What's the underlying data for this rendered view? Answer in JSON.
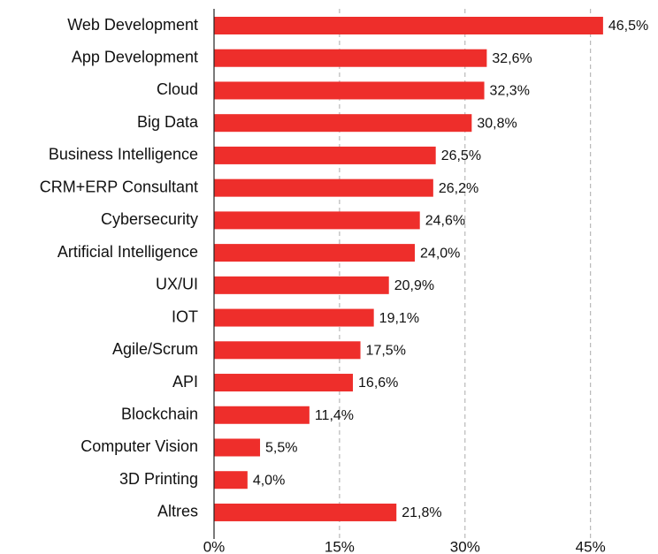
{
  "chart_data": {
    "type": "bar",
    "orientation": "horizontal",
    "categories": [
      "Web Development",
      "App Development",
      "Cloud",
      "Big Data",
      "Business Intelligence",
      "CRM+ERP Consultant",
      "Cybersecurity",
      "Artificial Intelligence",
      "UX/UI",
      "IOT",
      "Agile/Scrum",
      "API",
      "Blockchain",
      "Computer Vision",
      "3D Printing",
      "Altres"
    ],
    "values": [
      46.5,
      32.6,
      32.3,
      30.8,
      26.5,
      26.2,
      24.6,
      24.0,
      20.9,
      19.1,
      17.5,
      16.6,
      11.4,
      5.5,
      4.0,
      21.8
    ],
    "value_labels": [
      "46,5%",
      "32,6%",
      "32,3%",
      "30,8%",
      "26,5%",
      "26,2%",
      "24,6%",
      "24,0%",
      "20,9%",
      "19,1%",
      "17,5%",
      "16,6%",
      "11,4%",
      "5,5%",
      "4,0%",
      "21,8%"
    ],
    "color": "#ee2e2b",
    "xlim": [
      0,
      50
    ],
    "xticks": [
      {
        "value": 0,
        "label": "0%"
      },
      {
        "value": 15,
        "label": "15%"
      },
      {
        "value": 30,
        "label": "30%"
      },
      {
        "value": 45,
        "label": "45%"
      }
    ],
    "grid": true
  }
}
